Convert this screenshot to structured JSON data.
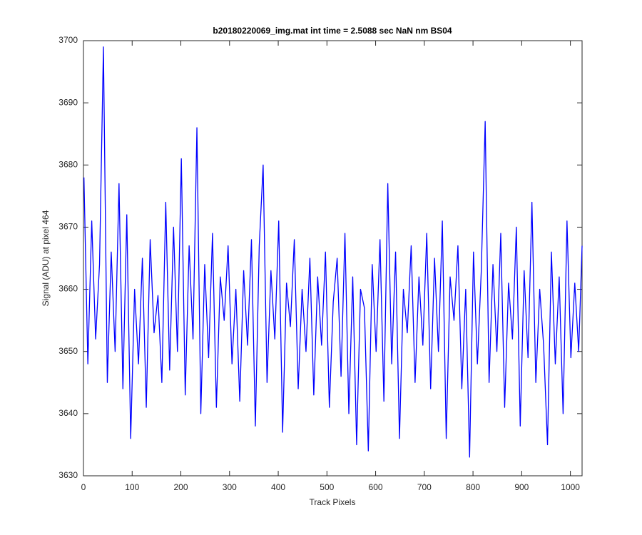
{
  "chart_data": {
    "type": "line",
    "title": "b20180220069_img.mat int time = 2.5088 sec  NaN nm BS04",
    "x_label": "Track Pixels",
    "y_label": "Signal (ADU) at pixel 464",
    "xlim": [
      0,
      1024
    ],
    "ylim": [
      3630,
      3700
    ],
    "xticks": [
      0,
      100,
      200,
      300,
      400,
      500,
      600,
      700,
      800,
      900,
      1000
    ],
    "yticks": [
      3630,
      3640,
      3650,
      3660,
      3670,
      3680,
      3690,
      3700
    ],
    "x": [
      1,
      9,
      17,
      25,
      33,
      41,
      49,
      57,
      65,
      73,
      81,
      89,
      97,
      105,
      113,
      121,
      129,
      137,
      145,
      153,
      161,
      169,
      177,
      185,
      193,
      201,
      209,
      217,
      225,
      233,
      241,
      249,
      257,
      265,
      273,
      281,
      289,
      297,
      305,
      313,
      321,
      329,
      337,
      345,
      353,
      361,
      369,
      377,
      385,
      393,
      401,
      409,
      417,
      425,
      433,
      441,
      449,
      457,
      465,
      473,
      481,
      489,
      497,
      505,
      513,
      521,
      529,
      537,
      545,
      553,
      561,
      569,
      577,
      585,
      593,
      601,
      609,
      617,
      625,
      633,
      641,
      649,
      657,
      665,
      673,
      681,
      689,
      697,
      705,
      713,
      721,
      729,
      737,
      745,
      753,
      761,
      769,
      777,
      785,
      793,
      801,
      809,
      817,
      825,
      833,
      841,
      849,
      857,
      865,
      873,
      881,
      889,
      897,
      905,
      913,
      921,
      929,
      937,
      945,
      953,
      961,
      969,
      977,
      985,
      993,
      1001,
      1009,
      1017,
      1024
    ],
    "series": [
      {
        "name": "Signal",
        "color": "#0000ff",
        "values": [
          3678,
          3648,
          3671,
          3652,
          3664,
          3699,
          3645,
          3666,
          3650,
          3677,
          3644,
          3672,
          3636,
          3660,
          3648,
          3665,
          3641,
          3668,
          3653,
          3659,
          3645,
          3674,
          3647,
          3670,
          3650,
          3681,
          3643,
          3667,
          3652,
          3686,
          3640,
          3664,
          3649,
          3669,
          3641,
          3662,
          3655,
          3667,
          3648,
          3660,
          3642,
          3663,
          3651,
          3668,
          3638,
          3667,
          3680,
          3645,
          3663,
          3652,
          3671,
          3637,
          3661,
          3654,
          3668,
          3644,
          3660,
          3650,
          3665,
          3643,
          3662,
          3651,
          3666,
          3641,
          3658,
          3665,
          3646,
          3669,
          3640,
          3662,
          3635,
          3660,
          3657,
          3634,
          3664,
          3650,
          3668,
          3642,
          3677,
          3648,
          3666,
          3636,
          3660,
          3653,
          3667,
          3645,
          3662,
          3651,
          3669,
          3644,
          3665,
          3650,
          3671,
          3636,
          3662,
          3655,
          3667,
          3644,
          3660,
          3633,
          3666,
          3648,
          3663,
          3687,
          3645,
          3664,
          3650,
          3669,
          3641,
          3661,
          3652,
          3670,
          3638,
          3663,
          3649,
          3674,
          3645,
          3660,
          3651,
          3635,
          3666,
          3648,
          3662,
          3640,
          3671,
          3649,
          3661,
          3650,
          3667
        ]
      }
    ],
    "grid": false
  }
}
